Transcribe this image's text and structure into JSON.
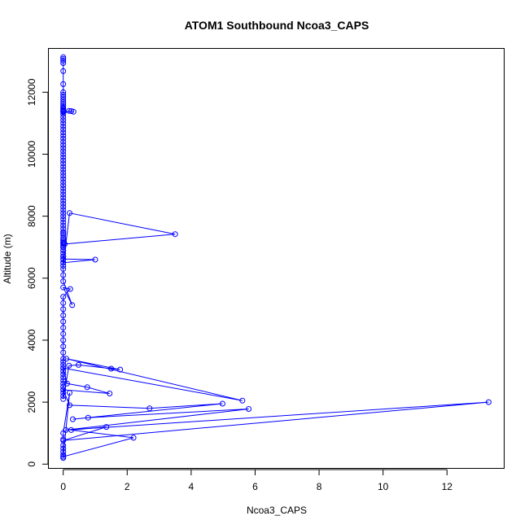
{
  "chart_data": {
    "type": "scatter",
    "title": "ATOM1 Southbound Ncoa3_CAPS",
    "xlabel": "Ncoa3_CAPS",
    "ylabel": "Altitude (m)",
    "xlim": [
      -0.45,
      13.8
    ],
    "ylim": [
      -150,
      13400
    ],
    "xticks": [
      0,
      2,
      4,
      6,
      8,
      10,
      12
    ],
    "yticks": [
      0,
      2000,
      4000,
      6000,
      8000,
      10000,
      12000
    ],
    "color": "#0000ff",
    "marker": "open-circle",
    "line": true,
    "x": [
      0,
      0,
      0,
      0,
      0,
      0,
      0,
      0,
      0,
      0,
      0,
      0,
      0,
      0,
      0,
      0,
      0,
      0,
      0,
      0.25,
      0.32,
      0.18,
      0,
      0,
      0,
      0,
      0,
      0,
      0,
      0,
      0,
      0,
      0,
      0,
      0,
      0,
      0,
      0,
      0,
      0,
      0,
      0,
      0,
      0,
      0,
      0,
      0,
      0,
      0,
      0,
      0,
      0,
      0,
      0,
      0,
      0,
      0,
      0,
      0,
      0,
      0,
      0,
      0,
      0,
      0,
      0,
      0,
      0,
      0,
      0,
      0,
      0,
      0,
      0,
      0,
      0,
      0,
      0.2,
      3.5,
      0.05,
      0,
      0,
      0,
      0,
      1.0,
      0,
      0,
      0,
      0,
      0.28,
      0,
      0.22,
      0,
      0,
      0,
      0,
      0,
      0,
      0,
      0,
      0,
      0,
      0,
      0,
      0,
      0,
      0,
      0,
      0,
      0,
      0,
      0,
      0,
      0,
      0,
      0,
      0.18,
      0.48,
      1.5,
      1.78,
      0.1,
      5.6,
      0,
      0.12,
      0.75,
      1.45,
      0,
      0.2,
      2.7,
      4.98,
      0.3,
      0.78,
      5.8,
      0.08,
      13.3,
      0,
      1.35,
      0.25,
      2.2,
      0,
      0.2,
      0,
      0,
      0,
      0,
      0,
      0,
      0
    ],
    "y": [
      13130,
      13080,
      13020,
      12940,
      12680,
      12260,
      12000,
      11920,
      11840,
      11760,
      11680,
      11620,
      11560,
      11500,
      11460,
      11420,
      11400,
      11380,
      11360,
      11390,
      11370,
      11400,
      11300,
      11200,
      11100,
      11000,
      10900,
      10800,
      10700,
      10600,
      10500,
      10400,
      10300,
      10200,
      10100,
      10000,
      9900,
      9800,
      9700,
      9600,
      9500,
      9400,
      9300,
      9200,
      9100,
      9000,
      8900,
      8800,
      8700,
      8600,
      8500,
      8400,
      8300,
      8200,
      8100,
      8000,
      7900,
      7800,
      7700,
      7600,
      7500,
      7450,
      7400,
      7300,
      7250,
      7200,
      7150,
      7130,
      7100,
      7050,
      7000,
      6900,
      6800,
      6700,
      6600,
      6500,
      6400,
      8100,
      7420,
      7100,
      7000,
      6900,
      6700,
      6620,
      6600,
      6500,
      6300,
      6100,
      5900,
      5130,
      5700,
      5650,
      5400,
      5200,
      5000,
      4800,
      4600,
      4400,
      4200,
      4000,
      3800,
      3600,
      3400,
      3300,
      3200,
      3100,
      3000,
      2900,
      2800,
      2700,
      2600,
      2500,
      2400,
      2300,
      2200,
      2100,
      3180,
      3200,
      3080,
      3050,
      3400,
      2050,
      3100,
      2600,
      2480,
      2280,
      2400,
      1900,
      1800,
      1950,
      1450,
      1500,
      1780,
      1100,
      2000,
      760,
      1200,
      1100,
      850,
      240,
      2300,
      1000,
      800,
      600,
      500,
      400,
      300,
      200
    ]
  }
}
